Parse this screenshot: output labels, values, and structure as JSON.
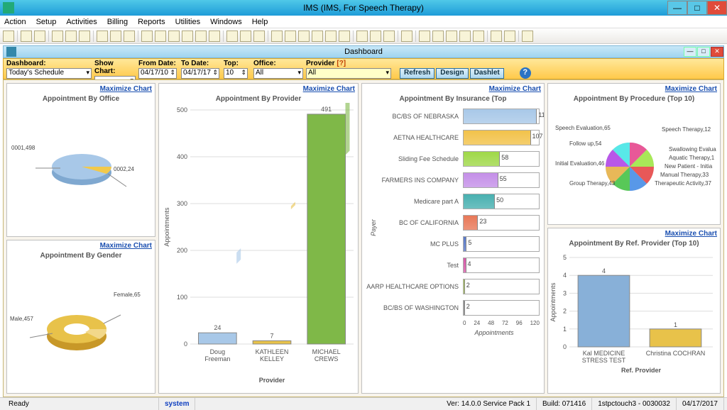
{
  "app": {
    "title": "IMS (IMS, For Speech Therapy)"
  },
  "menu": [
    "Action",
    "Setup",
    "Activities",
    "Billing",
    "Reports",
    "Utilities",
    "Windows",
    "Help"
  ],
  "dash": {
    "title": "Dashboard",
    "labels": {
      "dashboard": "Dashboard:",
      "showchart": "Show Chart:",
      "fromdate": "From Date:",
      "todate": "To Date:",
      "top": "Top:",
      "office": "Office:",
      "provider": "Provider"
    },
    "values": {
      "dashboard": "Today's Schedule",
      "fromdate": "04/17/10",
      "todate": "04/17/17",
      "top": "10",
      "office": "All",
      "provider": "All"
    },
    "buttons": {
      "refresh": "Refresh",
      "design": "Design",
      "dashlet": "Dashlet"
    },
    "provider_q": "[?]"
  },
  "maximize": "Maximize Chart",
  "charts": {
    "office": {
      "title": "Appointment By Office",
      "slices": [
        {
          "label": "0001",
          "value": 498,
          "color": "#9ec7e8"
        },
        {
          "label": "0002",
          "value": 24,
          "color": "#f2c94a"
        }
      ]
    },
    "gender": {
      "title": "Appointment By Gender",
      "slices": [
        {
          "label": "Male",
          "value": 457,
          "color": "#e8c24a"
        },
        {
          "label": "Female",
          "value": 65,
          "color": "#f2d88a"
        }
      ]
    },
    "provider": {
      "title": "Appointment By Provider",
      "ylabel": "Appointments",
      "xlabel": "Provider",
      "ymax": 500,
      "ystep": 100,
      "bars": [
        {
          "label": "Doug Freeman",
          "value": 24,
          "color": "#a8c8e8"
        },
        {
          "label": "KATHLEEN KELLEY",
          "value": 7,
          "color": "#e8c24a"
        },
        {
          "label": "MICHAEL CREWS",
          "value": 491,
          "color": "#7fb848"
        }
      ]
    },
    "insurance": {
      "title": "Appointment By Insurance (Top",
      "xlabel": "Appointments",
      "ylabel": "Payer",
      "xmax": 120,
      "xstep": 24,
      "bars": [
        {
          "label": "BC/BS OF NEBRASKA",
          "value": 117,
          "color": "#a8c8e8"
        },
        {
          "label": "AETNA HEALTHCARE",
          "value": 107,
          "color": "#f2c24a"
        },
        {
          "label": "Sliding Fee Schedule",
          "value": 58,
          "color": "#9fd848"
        },
        {
          "label": "FARMERS INS COMPANY",
          "value": 55,
          "color": "#c48fe8"
        },
        {
          "label": "Medicare part A",
          "value": 50,
          "color": "#48b0b0"
        },
        {
          "label": "BC OF CALIFORNIA",
          "value": 23,
          "color": "#e87858"
        },
        {
          "label": "MC PLUS",
          "value": 5,
          "color": "#5878c8"
        },
        {
          "label": "Test",
          "value": 4,
          "color": "#d858a8"
        },
        {
          "label": "AARP HEALTHCARE OPTIONS",
          "value": 2,
          "color": "#a8c848"
        },
        {
          "label": "BC/BS OF WASHINGTON",
          "value": 2,
          "color": "#888888"
        }
      ]
    },
    "procedure": {
      "title": "Appointment By Procedure (Top 10)",
      "labels": [
        "Speech Therapy,12",
        "Swallowing Evalua",
        "Aquatic Therapy,1",
        "New Patient - Initia",
        "Manual Therapy,33",
        "Therapeutic Activity,37",
        "Group Therapy,43",
        "Initial Evaluation,46",
        "Follow up,54",
        "Speech Evaluation,65"
      ]
    },
    "refprov": {
      "title": "Appointment By Ref. Provider (Top 10)",
      "ylabel": "Appointments",
      "xlabel": "Ref. Provider",
      "ymax": 5,
      "ystep": 1,
      "bars": [
        {
          "label": "Kal MEDICINE STRESS TEST",
          "value": 4,
          "color": "#88b0d8"
        },
        {
          "label": "Christina COCHRAN",
          "value": 1,
          "color": "#e8c24a"
        }
      ]
    }
  },
  "status": {
    "ready": "Ready",
    "system": "system",
    "ver": "Ver: 14.0.0 Service Pack 1",
    "build": "Build: 071416",
    "machine": "1stpctouch3 - 0030032",
    "date": "04/17/2017"
  }
}
